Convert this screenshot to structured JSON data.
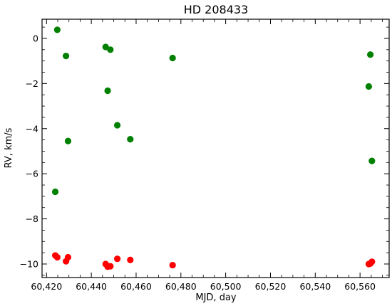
{
  "chart_data": {
    "type": "scatter",
    "title": "HD 208433",
    "xlabel": "MJD, day",
    "ylabel": "RV, km/s",
    "xlim": [
      60418,
      60573
    ],
    "ylim": [
      -10.6,
      0.85
    ],
    "xticks": [
      60420,
      60440,
      60460,
      60480,
      60500,
      60520,
      60540,
      60560
    ],
    "xtick_labels": [
      "60,420",
      "60,440",
      "60,460",
      "60,480",
      "60,500",
      "60,520",
      "60,540",
      "60,560"
    ],
    "yticks": [
      0,
      -2,
      -4,
      -6,
      -8,
      -10
    ],
    "ytick_labels": [
      "0",
      "−2",
      "−4",
      "−6",
      "−8",
      "−10"
    ],
    "grid": false,
    "series": [
      {
        "color": "#008000",
        "points": [
          [
            60423.9,
            -6.8
          ],
          [
            60424.8,
            0.38
          ],
          [
            60428.7,
            -0.78
          ],
          [
            60429.6,
            -4.55
          ],
          [
            60446.4,
            -0.38
          ],
          [
            60447.3,
            -2.32
          ],
          [
            60448.5,
            -0.5
          ],
          [
            60451.6,
            -3.85
          ],
          [
            60457.4,
            -4.47
          ],
          [
            60476.3,
            -0.87
          ],
          [
            60563.9,
            -2.13
          ],
          [
            60564.6,
            -0.72
          ],
          [
            60565.3,
            -5.43
          ]
        ]
      },
      {
        "color": "#ff0000",
        "points": [
          [
            60423.9,
            -9.62
          ],
          [
            60424.8,
            -9.7
          ],
          [
            60428.7,
            -9.88
          ],
          [
            60429.6,
            -9.7
          ],
          [
            60446.4,
            -10.0
          ],
          [
            60447.3,
            -10.12
          ],
          [
            60448.5,
            -10.1
          ],
          [
            60451.6,
            -9.77
          ],
          [
            60457.4,
            -9.82
          ],
          [
            60476.3,
            -10.05
          ],
          [
            60563.9,
            -10.0
          ],
          [
            60564.6,
            -9.98
          ],
          [
            60565.3,
            -9.9
          ]
        ]
      }
    ]
  }
}
